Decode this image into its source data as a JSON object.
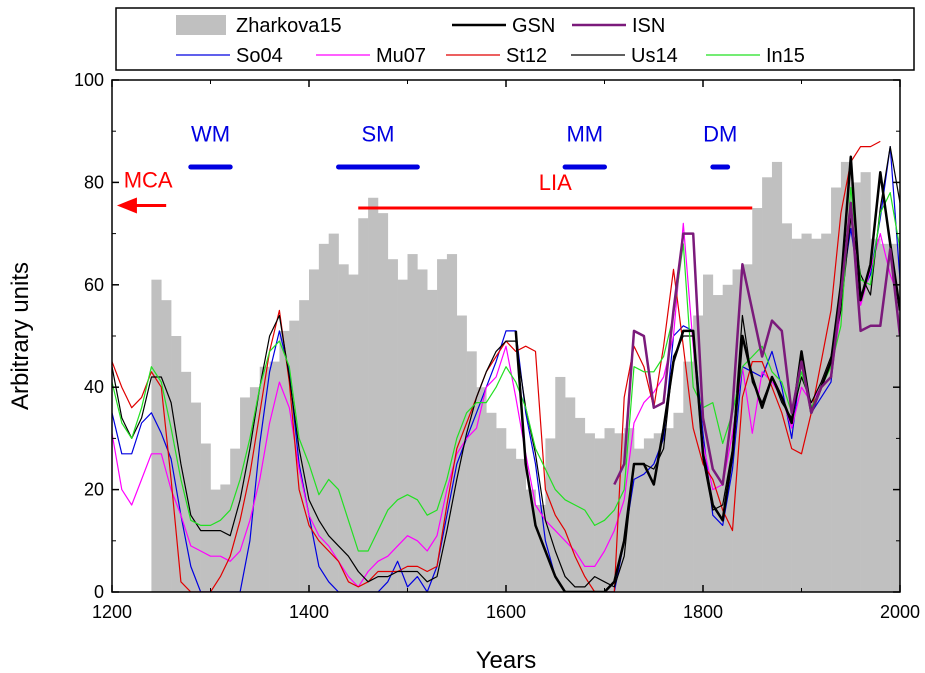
{
  "chart_data": {
    "type": "line",
    "xlabel": "Years",
    "ylabel": "Arbitrary units",
    "xlim": [
      1200,
      2000
    ],
    "ylim": [
      0,
      100
    ],
    "x_ticks": [
      "1200",
      "1400",
      "1600",
      "1800",
      "2000"
    ],
    "y_ticks": [
      "0",
      "20",
      "40",
      "60",
      "80",
      "100"
    ],
    "legend_position": "top",
    "bars": {
      "name": "Zharkova15",
      "color": "#c0c0c0",
      "width": 10,
      "x": [
        1240,
        1250,
        1260,
        1270,
        1280,
        1290,
        1300,
        1310,
        1320,
        1330,
        1340,
        1350,
        1360,
        1370,
        1380,
        1390,
        1400,
        1410,
        1420,
        1430,
        1440,
        1450,
        1460,
        1470,
        1480,
        1490,
        1500,
        1510,
        1520,
        1530,
        1540,
        1550,
        1560,
        1570,
        1580,
        1590,
        1600,
        1610,
        1620,
        1630,
        1640,
        1650,
        1660,
        1670,
        1680,
        1690,
        1700,
        1710,
        1720,
        1730,
        1740,
        1750,
        1760,
        1770,
        1780,
        1790,
        1800,
        1810,
        1820,
        1830,
        1840,
        1850,
        1860,
        1870,
        1880,
        1890,
        1900,
        1910,
        1920,
        1930,
        1940,
        1950,
        1960,
        1970,
        1980,
        1990
      ],
      "values": [
        61,
        57,
        50,
        43,
        37,
        29,
        20,
        21,
        28,
        38,
        40,
        44,
        45,
        51,
        53,
        57,
        63,
        68,
        70,
        64,
        62,
        73,
        77,
        74,
        65,
        61,
        66,
        63,
        59,
        65,
        66,
        54,
        47,
        40,
        35,
        32,
        28,
        26,
        20,
        17,
        30,
        42,
        38,
        34,
        31,
        30,
        32,
        31,
        32,
        28,
        30,
        31,
        32,
        35,
        45,
        54,
        62,
        58,
        60,
        63,
        64,
        75,
        81,
        84,
        72,
        69,
        70,
        69,
        70,
        79,
        84,
        80,
        82,
        69,
        68,
        68
      ]
    },
    "series": [
      {
        "name": "GSN",
        "color": "#000000",
        "width": 2.5,
        "x": [
          1610,
          1620,
          1630,
          1640,
          1650,
          1660,
          1670,
          1680,
          1690,
          1700,
          1710,
          1720,
          1730,
          1740,
          1750,
          1760,
          1770,
          1780,
          1790,
          1800,
          1810,
          1820,
          1830,
          1840,
          1850,
          1860,
          1870,
          1880,
          1890,
          1900,
          1910,
          1920,
          1930,
          1940,
          1950,
          1960,
          1970,
          1980,
          1990,
          2000
        ],
        "y": [
          51,
          25,
          13,
          8,
          3,
          0,
          0,
          0,
          0,
          0,
          2,
          10,
          25,
          25,
          21,
          32,
          45,
          51,
          51,
          27,
          17,
          14,
          27,
          50,
          42,
          36,
          42,
          38,
          33,
          47,
          35,
          40,
          45,
          60,
          85,
          57,
          64,
          82,
          68,
          55
        ]
      },
      {
        "name": "ISN",
        "color": "#7b1a7b",
        "width": 2.5,
        "x": [
          1710,
          1720,
          1730,
          1740,
          1750,
          1760,
          1770,
          1780,
          1790,
          1800,
          1810,
          1820,
          1830,
          1840,
          1850,
          1860,
          1870,
          1880,
          1890,
          1900,
          1910,
          1920,
          1930,
          1940,
          1950,
          1960,
          1970,
          1980,
          1990,
          2000
        ],
        "y": [
          21,
          25,
          51,
          50,
          36,
          37,
          55,
          70,
          70,
          34,
          24,
          21,
          36,
          64,
          55,
          46,
          53,
          51,
          35,
          45,
          35,
          40,
          42,
          58,
          76,
          51,
          52,
          52,
          67,
          50
        ]
      },
      {
        "name": "So04",
        "color": "#0000e0",
        "width": 1.2,
        "x": [
          1200,
          1210,
          1220,
          1230,
          1240,
          1250,
          1260,
          1270,
          1280,
          1290,
          1300,
          1310,
          1320,
          1330,
          1340,
          1350,
          1360,
          1370,
          1380,
          1390,
          1400,
          1410,
          1420,
          1430,
          1440,
          1450,
          1460,
          1470,
          1480,
          1490,
          1500,
          1510,
          1520,
          1530,
          1540,
          1550,
          1560,
          1570,
          1580,
          1590,
          1600,
          1610,
          1620,
          1630,
          1640,
          1650,
          1660,
          1670,
          1680,
          1690,
          1700,
          1710,
          1720,
          1730,
          1740,
          1750,
          1760,
          1770,
          1780,
          1790,
          1800,
          1810,
          1820,
          1830,
          1840,
          1850,
          1860,
          1870,
          1880,
          1890,
          1900,
          1910,
          1920,
          1930,
          1940,
          1950,
          1960,
          1970,
          1980,
          1990,
          2000
        ],
        "y": [
          35,
          27,
          27,
          33,
          35,
          31,
          26,
          15,
          5,
          0,
          0,
          0,
          0,
          0,
          10,
          29,
          43,
          51,
          43,
          25,
          15,
          5,
          2,
          0,
          0,
          0,
          0,
          0,
          2,
          6,
          1,
          3,
          0,
          5,
          15,
          25,
          30,
          35,
          40,
          45,
          51,
          51,
          35,
          25,
          10,
          3,
          0,
          0,
          0,
          0,
          0,
          0,
          10,
          22,
          23,
          25,
          30,
          50,
          52,
          51,
          31,
          15,
          13,
          24,
          44,
          43,
          42,
          47,
          40,
          30,
          45,
          35,
          38,
          41,
          58,
          71,
          58,
          62,
          73,
          87,
          61
        ]
      },
      {
        "name": "Mu07",
        "color": "#ff00ff",
        "width": 1.2,
        "x": [
          1200,
          1210,
          1220,
          1230,
          1240,
          1250,
          1260,
          1270,
          1280,
          1290,
          1300,
          1310,
          1320,
          1330,
          1340,
          1350,
          1360,
          1370,
          1380,
          1390,
          1400,
          1410,
          1420,
          1430,
          1440,
          1450,
          1460,
          1470,
          1480,
          1490,
          1500,
          1510,
          1520,
          1530,
          1540,
          1550,
          1560,
          1570,
          1580,
          1590,
          1600,
          1610,
          1620,
          1630,
          1640,
          1650,
          1660,
          1670,
          1680,
          1690,
          1700,
          1710,
          1720,
          1730,
          1740,
          1750,
          1760,
          1770,
          1780,
          1790,
          1800,
          1810,
          1820,
          1830,
          1840,
          1850,
          1860,
          1870,
          1880,
          1890,
          1900,
          1910,
          1920,
          1930,
          1940,
          1950,
          1960,
          1970,
          1980,
          1990,
          2000
        ],
        "y": [
          31,
          20,
          17,
          22,
          27,
          27,
          20,
          15,
          9,
          8,
          7,
          7,
          6,
          8,
          14,
          22,
          33,
          41,
          36,
          24,
          15,
          11,
          9,
          6,
          3,
          1,
          4,
          6,
          7,
          9,
          11,
          10,
          8,
          11,
          20,
          27,
          30,
          32,
          40,
          42,
          48,
          38,
          27,
          17,
          14,
          12,
          10,
          8,
          5,
          5,
          8,
          12,
          18,
          33,
          37,
          39,
          42,
          50,
          72,
          48,
          29,
          20,
          21,
          31,
          44,
          31,
          43,
          41,
          38,
          32,
          40,
          37,
          40,
          42,
          55,
          75,
          56,
          63,
          70,
          62,
          57
        ]
      },
      {
        "name": "St12",
        "color": "#e00000",
        "width": 1.2,
        "x": [
          1200,
          1210,
          1220,
          1230,
          1240,
          1250,
          1260,
          1270,
          1280,
          1290,
          1300,
          1310,
          1320,
          1330,
          1340,
          1350,
          1360,
          1370,
          1380,
          1390,
          1400,
          1410,
          1420,
          1430,
          1440,
          1450,
          1460,
          1470,
          1480,
          1490,
          1500,
          1510,
          1520,
          1530,
          1540,
          1550,
          1560,
          1570,
          1580,
          1590,
          1600,
          1610,
          1620,
          1630,
          1640,
          1650,
          1660,
          1670,
          1680,
          1690,
          1700,
          1710,
          1720,
          1730,
          1740,
          1750,
          1760,
          1770,
          1780,
          1790,
          1800,
          1810,
          1820,
          1830,
          1840,
          1850,
          1860,
          1870,
          1880,
          1890,
          1900,
          1910,
          1920,
          1930,
          1940,
          1950,
          1960,
          1970,
          1980
        ],
        "y": [
          45,
          40,
          36,
          38,
          43,
          40,
          22,
          2,
          0,
          0,
          0,
          3,
          7,
          14,
          23,
          35,
          47,
          55,
          41,
          20,
          13,
          10,
          8,
          6,
          2,
          1,
          2,
          4,
          4,
          4,
          5,
          5,
          4,
          5,
          17,
          28,
          33,
          38,
          43,
          46,
          49,
          47,
          48,
          47,
          20,
          15,
          12,
          7,
          3,
          0,
          0,
          0,
          38,
          48,
          44,
          36,
          48,
          63,
          48,
          32,
          25,
          22,
          16,
          12,
          38,
          45,
          45,
          40,
          35,
          28,
          27,
          35,
          45,
          55,
          74,
          84,
          87,
          87,
          88
        ]
      },
      {
        "name": "Us14",
        "color": "#000000",
        "width": 1.2,
        "x": [
          1200,
          1210,
          1220,
          1230,
          1240,
          1250,
          1260,
          1270,
          1280,
          1290,
          1300,
          1310,
          1320,
          1330,
          1340,
          1350,
          1360,
          1370,
          1380,
          1390,
          1400,
          1410,
          1420,
          1430,
          1440,
          1450,
          1460,
          1470,
          1480,
          1490,
          1500,
          1510,
          1520,
          1530,
          1540,
          1550,
          1560,
          1570,
          1580,
          1590,
          1600,
          1610,
          1620,
          1630,
          1640,
          1650,
          1660,
          1670,
          1680,
          1690,
          1700,
          1710,
          1720,
          1730,
          1740,
          1750,
          1760,
          1770,
          1780,
          1790,
          1800,
          1810,
          1820,
          1830,
          1840,
          1850,
          1860,
          1870,
          1880,
          1890,
          1900,
          1910,
          1920,
          1930,
          1940,
          1950,
          1960,
          1970,
          1980,
          1990,
          2000
        ],
        "y": [
          44,
          34,
          30,
          34,
          42,
          42,
          37,
          25,
          15,
          12,
          12,
          12,
          11,
          18,
          28,
          40,
          50,
          54,
          42,
          28,
          18,
          14,
          11,
          9,
          7,
          4,
          2,
          3,
          3,
          4,
          4,
          4,
          2,
          3,
          12,
          22,
          31,
          38,
          43,
          47,
          49,
          49,
          36,
          27,
          14,
          8,
          3,
          1,
          1,
          3,
          2,
          1,
          7,
          25,
          25,
          24,
          28,
          46,
          50,
          50,
          26,
          16,
          17,
          28,
          54,
          41,
          37,
          42,
          37,
          34,
          42,
          37,
          41,
          46,
          55,
          73,
          62,
          58,
          75,
          87,
          76
        ]
      },
      {
        "name": "In15",
        "color": "#22e022",
        "width": 1.2,
        "x": [
          1200,
          1210,
          1220,
          1230,
          1240,
          1250,
          1260,
          1270,
          1280,
          1290,
          1300,
          1310,
          1320,
          1330,
          1340,
          1350,
          1360,
          1370,
          1380,
          1390,
          1400,
          1410,
          1420,
          1430,
          1440,
          1450,
          1460,
          1470,
          1480,
          1490,
          1500,
          1510,
          1520,
          1530,
          1540,
          1550,
          1560,
          1570,
          1580,
          1590,
          1600,
          1610,
          1620,
          1630,
          1640,
          1650,
          1660,
          1670,
          1680,
          1690,
          1700,
          1710,
          1720,
          1730,
          1740,
          1750,
          1760,
          1770,
          1780,
          1790,
          1800,
          1810,
          1820,
          1830,
          1840,
          1850,
          1860,
          1870,
          1880,
          1890,
          1900,
          1910,
          1920,
          1930,
          1940,
          1950,
          1960,
          1970,
          1980,
          1990,
          2000
        ],
        "y": [
          41,
          33,
          30,
          36,
          44,
          41,
          32,
          22,
          14,
          13,
          13,
          14,
          16,
          22,
          30,
          40,
          47,
          49,
          44,
          30,
          25,
          19,
          22,
          20,
          14,
          8,
          8,
          12,
          16,
          18,
          19,
          18,
          15,
          16,
          22,
          30,
          35,
          37,
          37,
          40,
          44,
          41,
          36,
          28,
          24,
          20,
          18,
          17,
          16,
          13,
          14,
          16,
          20,
          44,
          43,
          43,
          46,
          54,
          68,
          40,
          36,
          37,
          29,
          35,
          44,
          46,
          48,
          43,
          41,
          35,
          43,
          36,
          40,
          44,
          52,
          79,
          61,
          60,
          74,
          78,
          67
        ]
      }
    ],
    "annotations": [
      {
        "label": "WM",
        "color": "#0000e0",
        "range": [
          1280,
          1320
        ],
        "y": 83,
        "label_y": 88
      },
      {
        "label": "SM",
        "color": "#0000e0",
        "range": [
          1430,
          1510
        ],
        "y": 83,
        "label_y": 88
      },
      {
        "label": "MM",
        "color": "#0000e0",
        "range": [
          1660,
          1700
        ],
        "y": 83,
        "label_y": 88
      },
      {
        "label": "DM",
        "color": "#0000e0",
        "range": [
          1810,
          1825
        ],
        "y": 83,
        "label_y": 88
      },
      {
        "label": "LIA",
        "color": "#ff0000",
        "range": [
          1450,
          1850
        ],
        "y": 75,
        "label_y": 78.5
      },
      {
        "label": "MCA",
        "color": "#ff0000",
        "arrow_from": 1255,
        "arrow_to": 1205,
        "y": 75.5,
        "label_y": 79
      }
    ]
  }
}
